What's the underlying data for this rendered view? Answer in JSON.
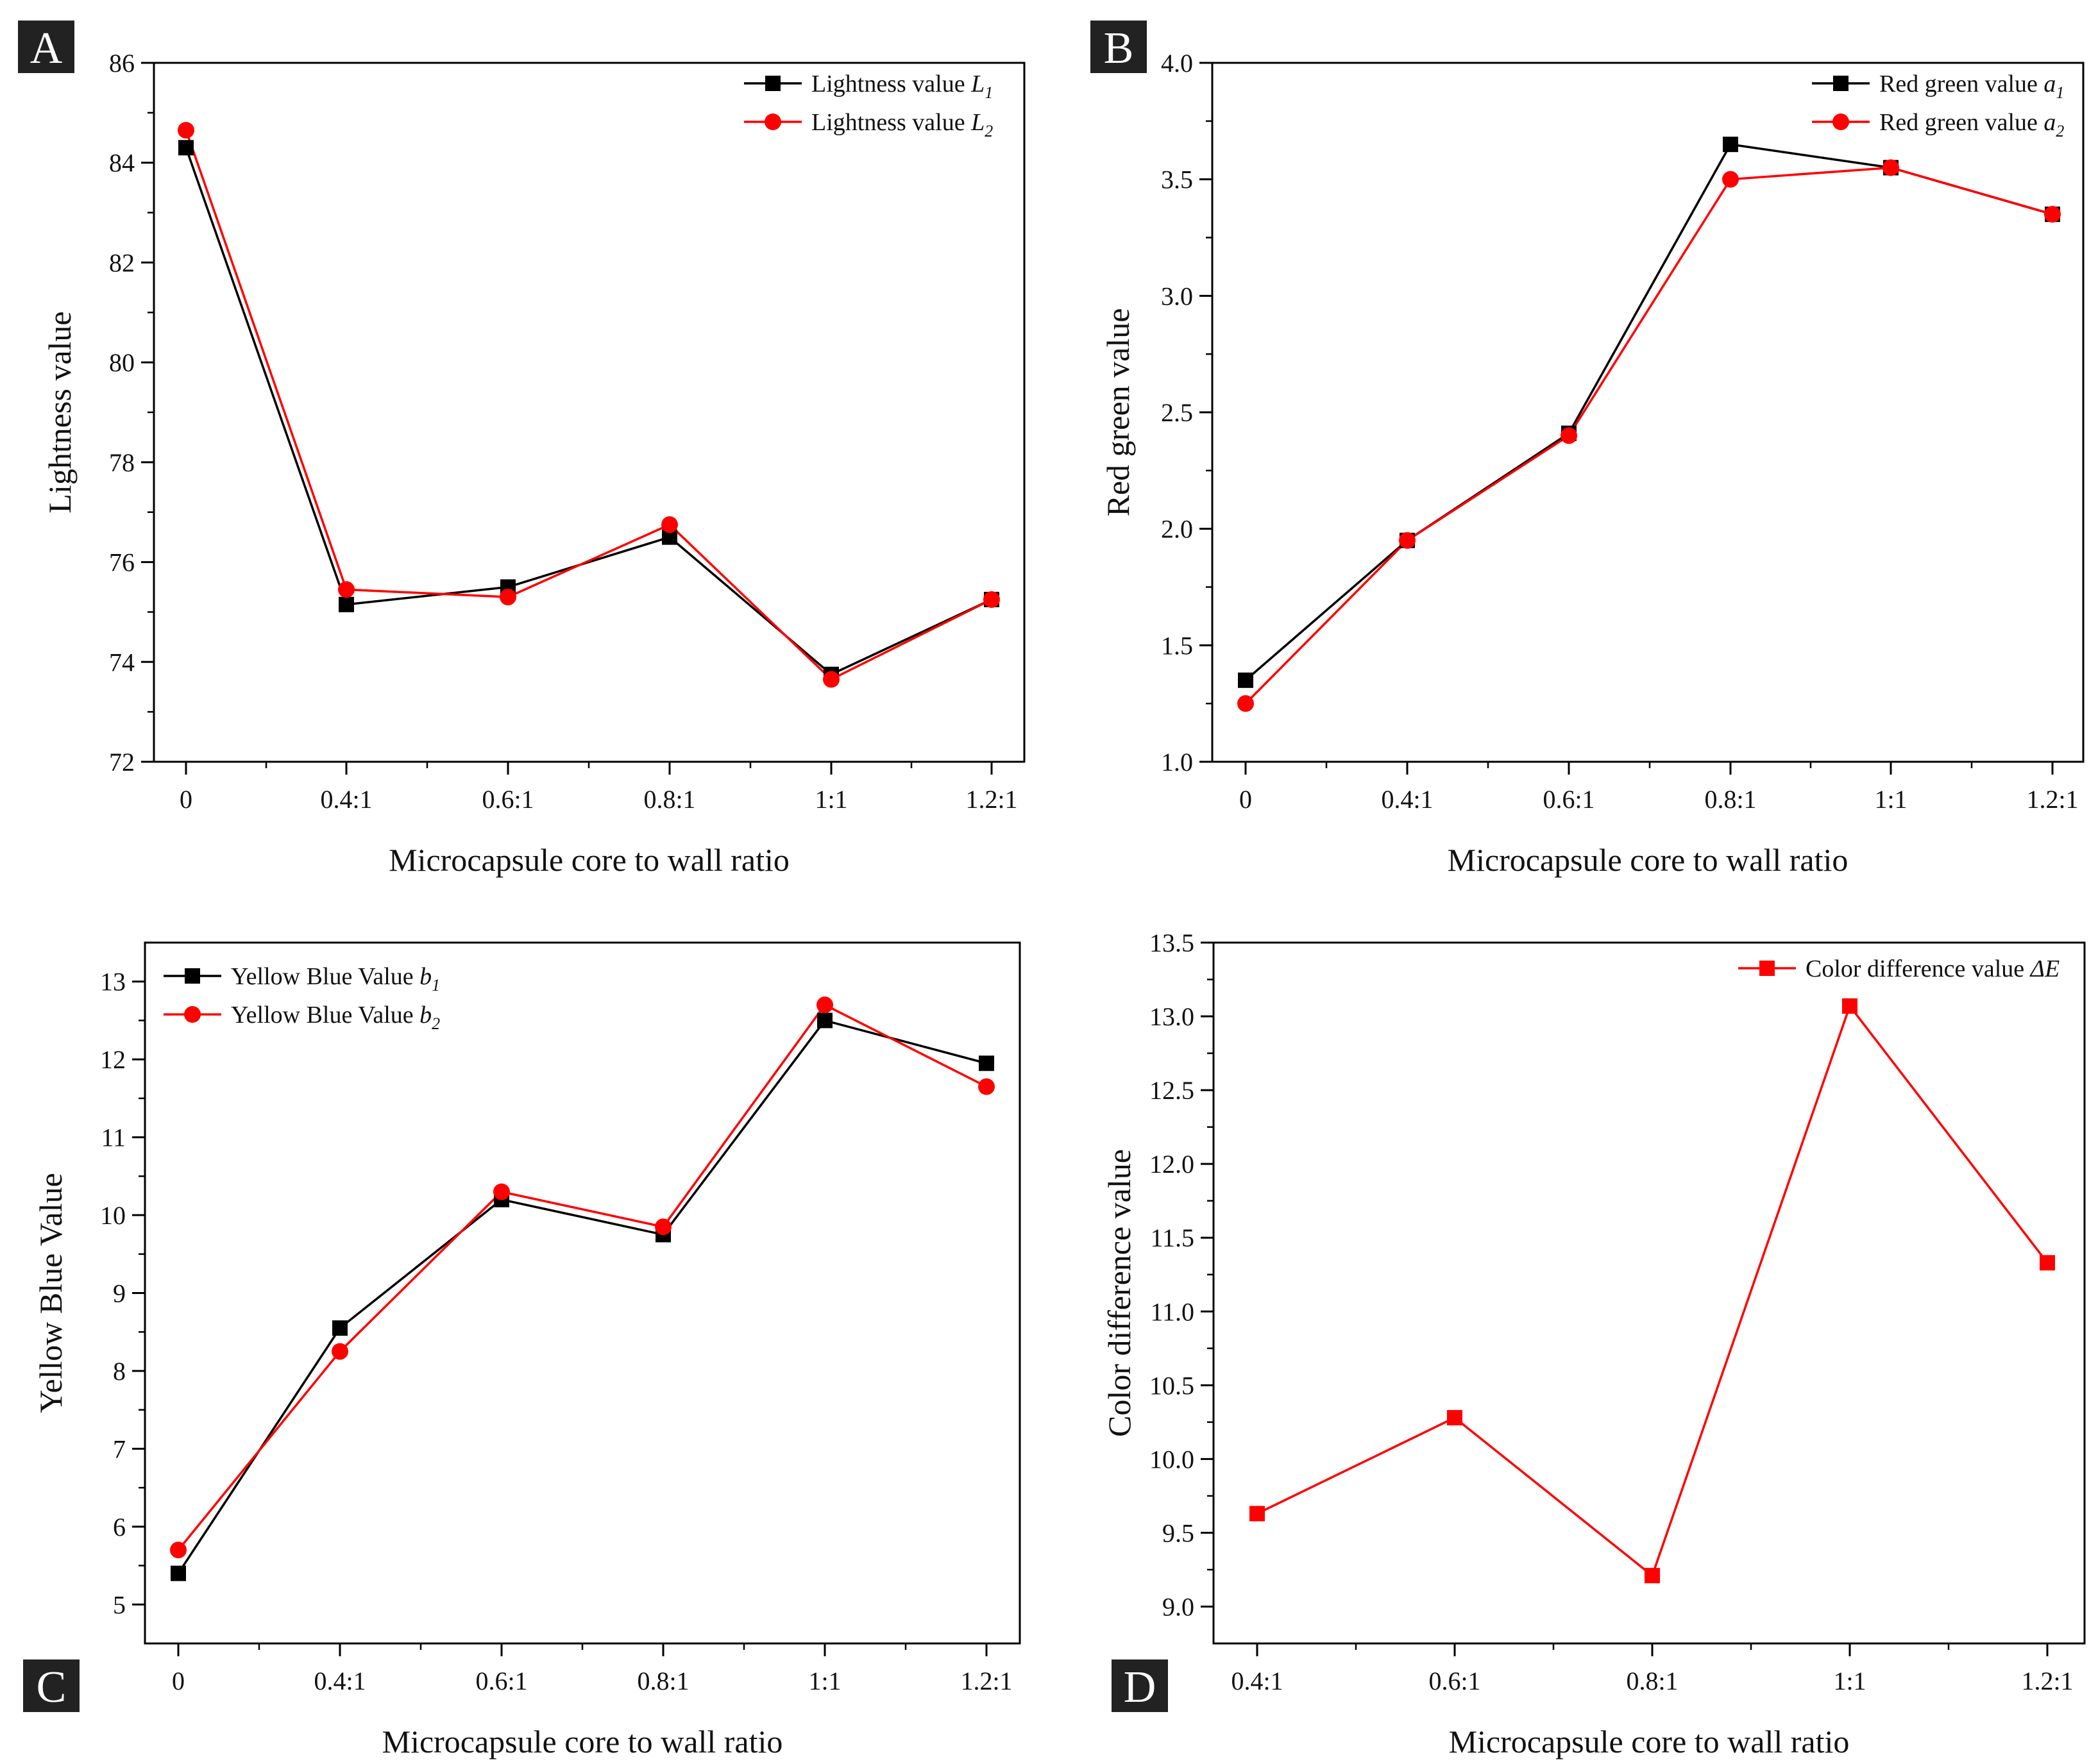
{
  "figure": {
    "panel_labels": [
      "A",
      "B",
      "C",
      "D"
    ]
  },
  "colors": {
    "series_black": "#000000",
    "series_red": "#ff0000",
    "panel_label_bg": "#222222"
  },
  "chart_data": [
    {
      "panel": "A",
      "type": "line",
      "categories": [
        "0",
        "0.4:1",
        "0.6:1",
        "0.8:1",
        "1:1",
        "1.2:1"
      ],
      "xlabel": "Microcapsule core to wall ratio",
      "ylabel": "Lightness value",
      "ylim": [
        72,
        86
      ],
      "yticks": [
        "72",
        "74",
        "76",
        "78",
        "80",
        "82",
        "84",
        "86"
      ],
      "legend_position": "top-right",
      "series": [
        {
          "name": "Lightness value L1",
          "legend_base": "Lightness value ",
          "legend_var": "L",
          "legend_sub": "1",
          "marker": "square",
          "color": "#000000",
          "values": [
            84.3,
            75.15,
            75.5,
            76.5,
            73.75,
            75.25
          ]
        },
        {
          "name": "Lightness value L2",
          "legend_base": "Lightness value ",
          "legend_var": "L",
          "legend_sub": "2",
          "marker": "circle",
          "color": "#ff0000",
          "values": [
            84.65,
            75.45,
            75.3,
            76.75,
            73.65,
            75.25
          ]
        }
      ]
    },
    {
      "panel": "B",
      "type": "line",
      "categories": [
        "0",
        "0.4:1",
        "0.6:1",
        "0.8:1",
        "1:1",
        "1.2:1"
      ],
      "xlabel": "Microcapsule core to wall ratio",
      "ylabel": "Red green value",
      "ylim": [
        1.0,
        4.0
      ],
      "yticks": [
        "1.0",
        "1.5",
        "2.0",
        "2.5",
        "3.0",
        "3.5",
        "4.0"
      ],
      "legend_position": "top-right",
      "series": [
        {
          "name": "Red green value a1",
          "legend_base": "Red green value ",
          "legend_var": "a",
          "legend_sub": "1",
          "marker": "square",
          "color": "#000000",
          "values": [
            1.35,
            1.95,
            2.41,
            3.65,
            3.55,
            3.35
          ]
        },
        {
          "name": "Red green value a2",
          "legend_base": "Red green value ",
          "legend_var": "a",
          "legend_sub": "2",
          "marker": "circle",
          "color": "#ff0000",
          "values": [
            1.25,
            1.95,
            2.4,
            3.5,
            3.55,
            3.35
          ]
        }
      ]
    },
    {
      "panel": "C",
      "type": "line",
      "categories": [
        "0",
        "0.4:1",
        "0.6:1",
        "0.8:1",
        "1:1",
        "1.2:1"
      ],
      "xlabel": "Microcapsule core to wall ratio",
      "ylabel": "Yellow Blue Value",
      "ylim": [
        4.5,
        13.5
      ],
      "yticks": [
        "5",
        "6",
        "7",
        "8",
        "9",
        "10",
        "11",
        "12",
        "13"
      ],
      "legend_position": "top-left",
      "series": [
        {
          "name": "Yellow Blue Value b1",
          "legend_base": "Yellow Blue Value ",
          "legend_var": "b",
          "legend_sub": "1",
          "marker": "square",
          "color": "#000000",
          "values": [
            5.4,
            8.55,
            10.2,
            9.75,
            12.5,
            11.95
          ]
        },
        {
          "name": "Yellow Blue Value b2",
          "legend_base": "Yellow Blue Value ",
          "legend_var": "b",
          "legend_sub": "2",
          "marker": "circle",
          "color": "#ff0000",
          "values": [
            5.7,
            8.25,
            10.3,
            9.85,
            12.7,
            11.65
          ]
        }
      ]
    },
    {
      "panel": "D",
      "type": "line",
      "categories": [
        "0.4:1",
        "0.6:1",
        "0.8:1",
        "1:1",
        "1.2:1"
      ],
      "xlabel": "Microcapsule core to wall ratio",
      "ylabel": "Color difference value",
      "ylim": [
        8.75,
        13.5
      ],
      "yticks": [
        "9.0",
        "9.5",
        "10.0",
        "10.5",
        "11.0",
        "11.5",
        "12.0",
        "12.5",
        "13.0",
        "13.5"
      ],
      "legend_position": "top-right",
      "series": [
        {
          "name": "Color difference value ΔE",
          "legend_base": "Color difference value ",
          "legend_var": "ΔE",
          "legend_sub": "",
          "marker": "square",
          "color": "#ff0000",
          "values": [
            9.63,
            10.28,
            9.21,
            13.07,
            11.33
          ]
        }
      ]
    }
  ]
}
